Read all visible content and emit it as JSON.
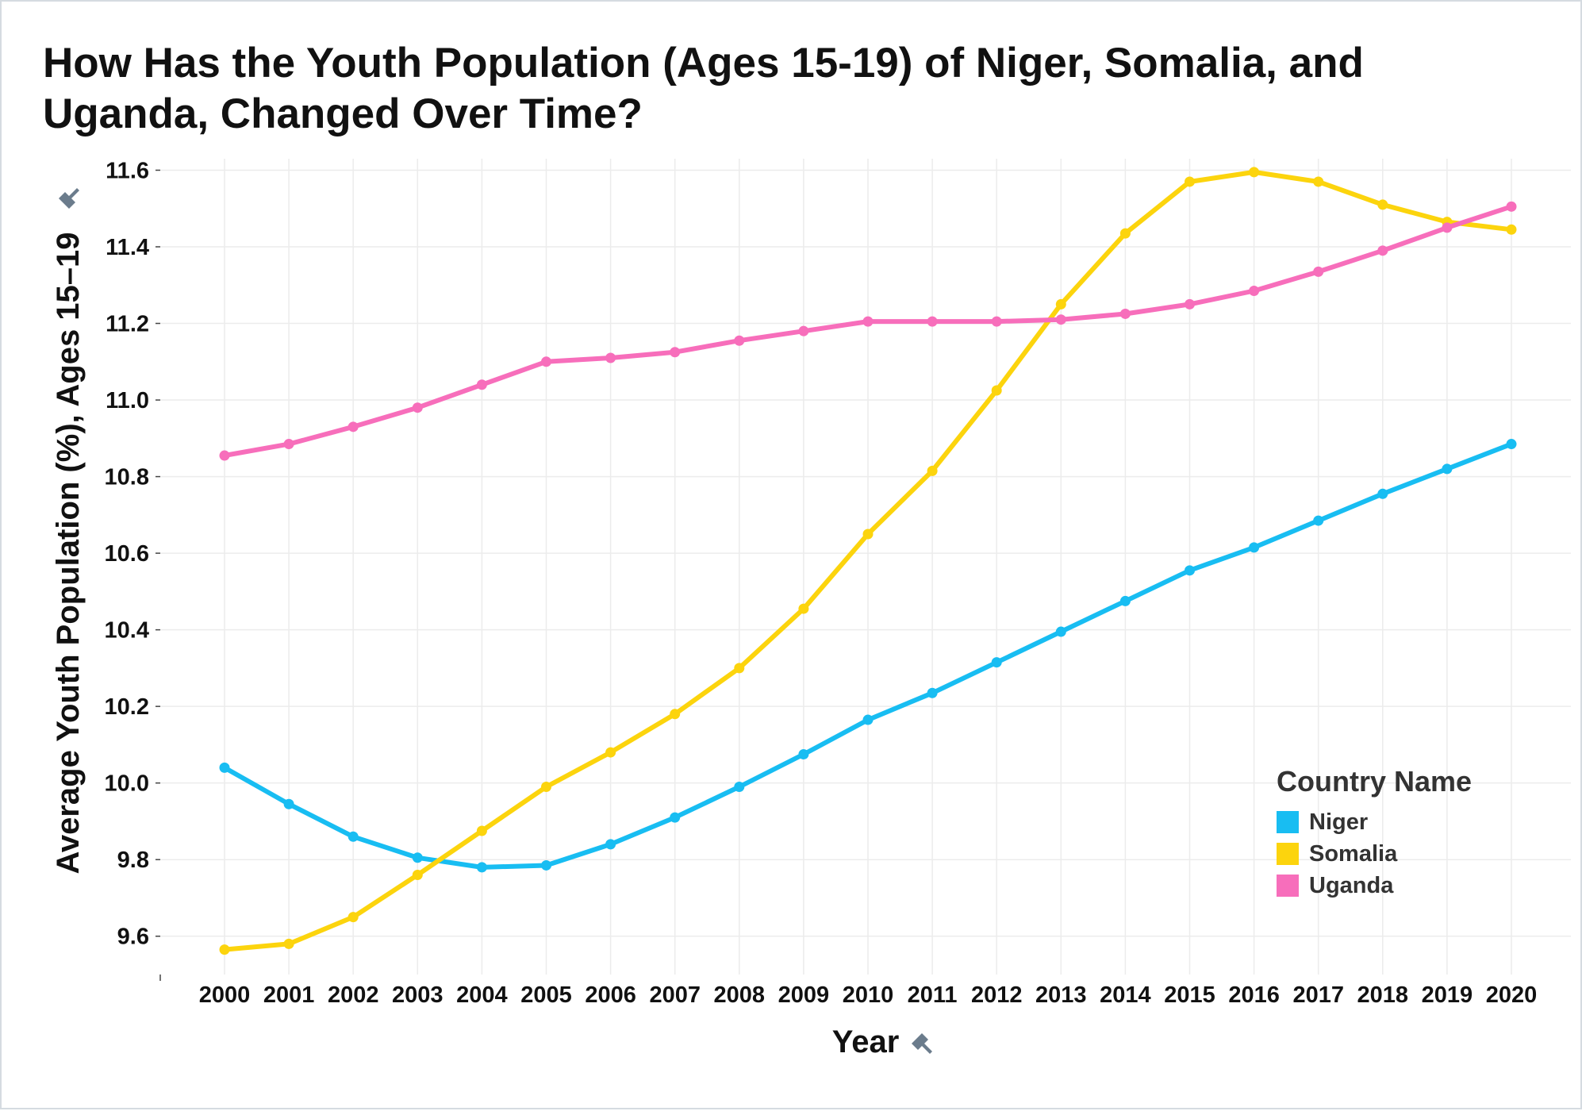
{
  "title": "How Has the Youth Population (Ages 15-19) of Niger, Somalia, and Uganda, Changed Over Time?",
  "chart_data": {
    "type": "line",
    "title": "How Has the Youth Population (Ages 15-19) of Niger, Somalia, and Uganda, Changed Over Time?",
    "xlabel": "Year",
    "ylabel": "Average Youth Population (%), Ages 15–19",
    "x": [
      "2000",
      "2001",
      "2002",
      "2003",
      "2004",
      "2005",
      "2006",
      "2007",
      "2008",
      "2009",
      "2010",
      "2011",
      "2012",
      "2013",
      "2014",
      "2015",
      "2016",
      "2017",
      "2018",
      "2019",
      "2020"
    ],
    "ylim": [
      9.5,
      11.63
    ],
    "yticks": [
      "9.6",
      "9.8",
      "10.0",
      "10.2",
      "10.4",
      "10.6",
      "10.8",
      "11.0",
      "11.2",
      "11.4",
      "11.6"
    ],
    "grid": true,
    "legend_title": "Country Name",
    "legend_position": "bottom-right",
    "series": [
      {
        "name": "Niger",
        "color": "#18bdf2",
        "values": [
          10.04,
          9.945,
          9.86,
          9.805,
          9.78,
          9.785,
          9.84,
          9.91,
          9.99,
          10.075,
          10.165,
          10.235,
          10.315,
          10.395,
          10.475,
          10.555,
          10.615,
          10.685,
          10.755,
          10.82,
          10.885
        ]
      },
      {
        "name": "Somalia",
        "color": "#fcd40d",
        "values": [
          9.565,
          9.58,
          9.65,
          9.76,
          9.875,
          9.99,
          10.08,
          10.18,
          10.3,
          10.455,
          10.65,
          10.815,
          11.025,
          11.25,
          11.435,
          11.57,
          11.595,
          11.57,
          11.51,
          11.465,
          11.445
        ]
      },
      {
        "name": "Uganda",
        "color": "#f76ebb",
        "values": [
          10.855,
          10.885,
          10.93,
          10.98,
          11.04,
          11.1,
          11.11,
          11.125,
          11.155,
          11.18,
          11.205,
          11.205,
          11.205,
          11.21,
          11.225,
          11.25,
          11.285,
          11.335,
          11.39,
          11.45,
          11.505
        ]
      }
    ]
  }
}
